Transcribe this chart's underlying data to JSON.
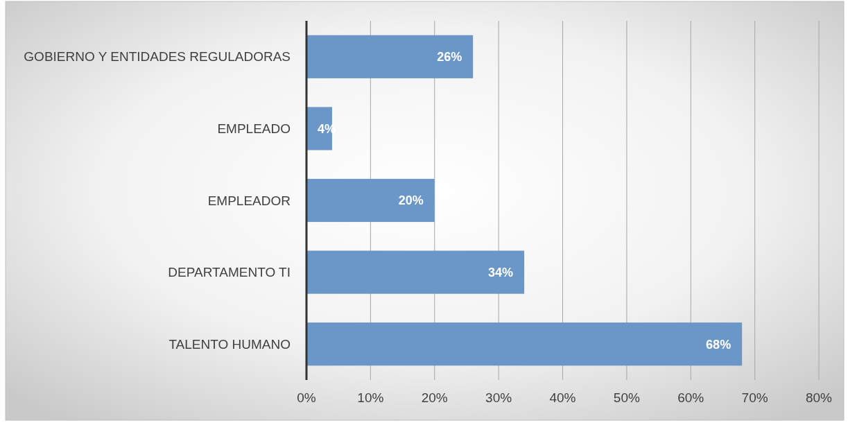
{
  "chart_data": {
    "type": "bar",
    "orientation": "horizontal",
    "categories": [
      "GOBIERNO Y ENTIDADES REGULADORAS",
      "EMPLEADO",
      "EMPLEADOR",
      "DEPARTAMENTO TI",
      "TALENTO HUMANO"
    ],
    "values": [
      26,
      4,
      20,
      34,
      68
    ],
    "value_labels": [
      "26%",
      "4%",
      "20%",
      "34%",
      "68%"
    ],
    "color": "#6a96c8",
    "xlim": [
      0,
      80
    ],
    "xticks": [
      {
        "value": 0,
        "label": "0%"
      },
      {
        "value": 10,
        "label": "10%"
      },
      {
        "value": 20,
        "label": "20%"
      },
      {
        "value": 30,
        "label": "30%"
      },
      {
        "value": 40,
        "label": "40%"
      },
      {
        "value": 50,
        "label": "50%"
      },
      {
        "value": 60,
        "label": "60%"
      },
      {
        "value": 70,
        "label": "70%"
      },
      {
        "value": 80,
        "label": "80%"
      }
    ],
    "grid": "x"
  }
}
